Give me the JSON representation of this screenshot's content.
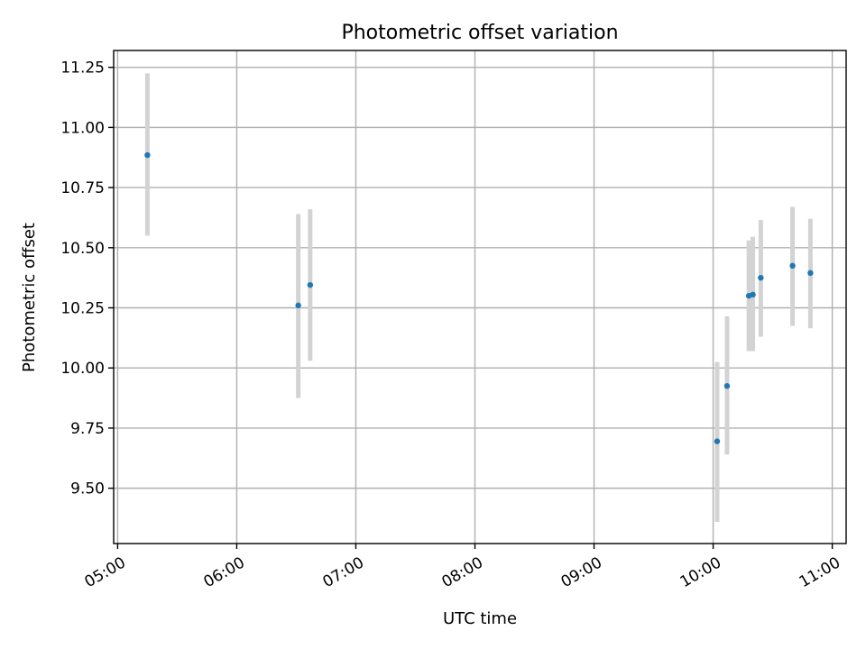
{
  "chart_data": {
    "type": "scatter",
    "title": "Photometric offset variation",
    "xlabel": "UTC time",
    "ylabel": "Photometric offset",
    "x_axis_type": "time",
    "xlim": [
      "04:58",
      "11:07"
    ],
    "ylim": [
      9.27,
      11.32
    ],
    "x_ticks": [
      "05:00",
      "06:00",
      "07:00",
      "08:00",
      "09:00",
      "10:00",
      "11:00"
    ],
    "y_ticks": [
      "9.50",
      "9.75",
      "10.00",
      "10.25",
      "10.50",
      "10.75",
      "11.00",
      "11.25"
    ],
    "grid": true,
    "legend": "none",
    "colors": {
      "point": "#1f77b4",
      "errorbar": "#d3d3d3"
    },
    "points": [
      {
        "time": "05:15",
        "y": 10.885,
        "low": 10.55,
        "high": 11.225
      },
      {
        "time": "06:31",
        "y": 10.26,
        "low": 9.875,
        "high": 10.64
      },
      {
        "time": "06:37",
        "y": 10.345,
        "low": 10.03,
        "high": 10.66
      },
      {
        "time": "10:02",
        "y": 9.695,
        "low": 9.36,
        "high": 10.025
      },
      {
        "time": "10:07",
        "y": 9.925,
        "low": 9.64,
        "high": 10.215
      },
      {
        "time": "10:18",
        "y": 10.3,
        "low": 10.07,
        "high": 10.53
      },
      {
        "time": "10:20",
        "y": 10.305,
        "low": 10.07,
        "high": 10.545
      },
      {
        "time": "10:24",
        "y": 10.375,
        "low": 10.13,
        "high": 10.615
      },
      {
        "time": "10:40",
        "y": 10.425,
        "low": 10.175,
        "high": 10.67
      },
      {
        "time": "10:49",
        "y": 10.395,
        "low": 10.165,
        "high": 10.62
      }
    ]
  }
}
